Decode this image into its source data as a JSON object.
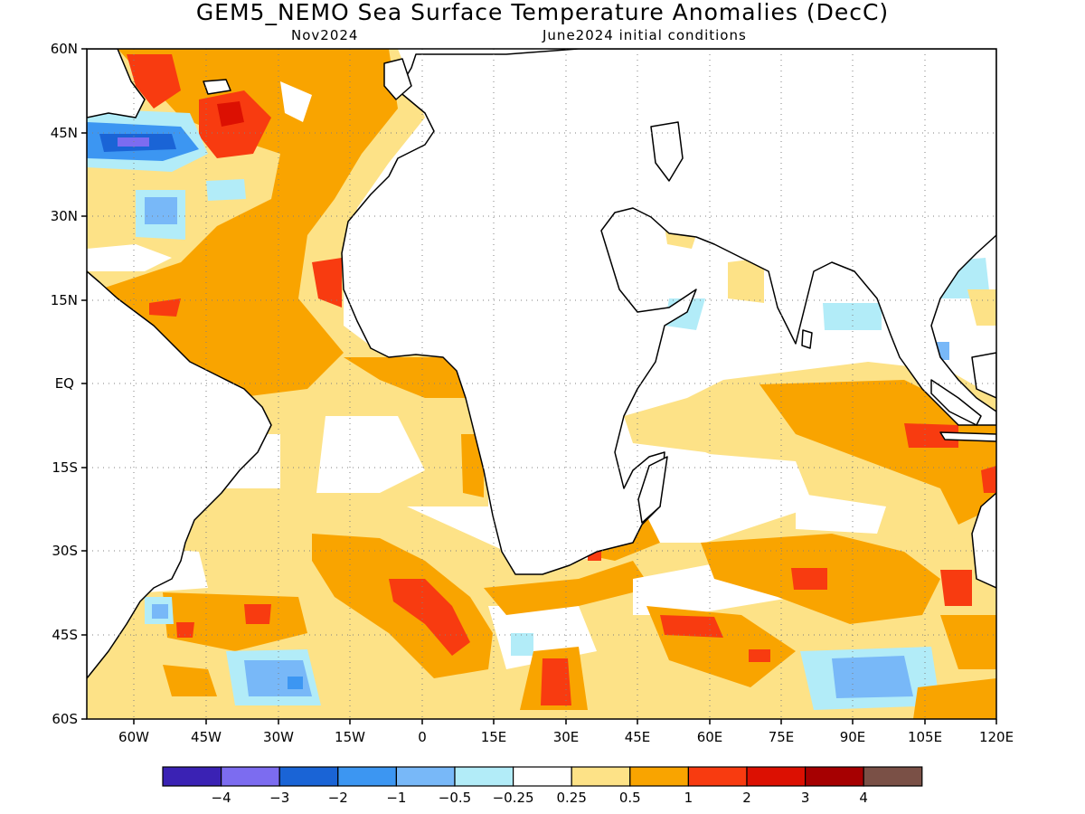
{
  "title": "GEM5_NEMO Sea Surface Temperature Anomalies (DecC)",
  "subtitle_left": "Nov2024",
  "subtitle_right": "June2024 initial conditions",
  "map": {
    "lon_range": [
      -70,
      120
    ],
    "lat_range": [
      -60,
      60
    ],
    "lon_ticks": [
      "60W",
      "45W",
      "30W",
      "15W",
      "0",
      "15E",
      "30E",
      "45E",
      "60E",
      "75E",
      "90E",
      "105E",
      "120E"
    ],
    "lat_ticks": [
      "60N",
      "45N",
      "30N",
      "15N",
      "EQ",
      "15S",
      "30S",
      "45S",
      "60S"
    ],
    "gridlines": "dotted"
  },
  "colorbar": {
    "colors": [
      "#3a22b4",
      "#7c6cf0",
      "#1a64d6",
      "#3c96f2",
      "#78b8f8",
      "#b2ecf8",
      "#ffffff",
      "#fde287",
      "#f9a400",
      "#f83b10",
      "#dc1002",
      "#a60001",
      "#7a5046"
    ],
    "labels": [
      "−4",
      "−3",
      "−2",
      "−1",
      "−0.5",
      "−0.25",
      "0.25",
      "0.5",
      "1",
      "2",
      "3",
      "4"
    ]
  }
}
